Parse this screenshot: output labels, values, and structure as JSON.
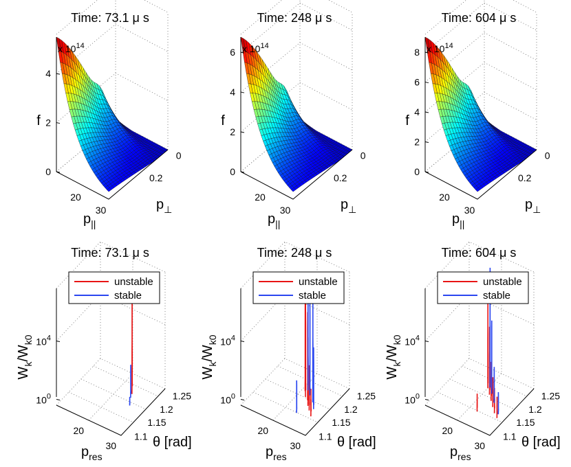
{
  "colors": {
    "unstable": "#e81414",
    "stable": "#2a46f0",
    "grid": "#666666"
  },
  "chart_data": [
    {
      "type": "surface",
      "panel": "f-1",
      "title": "Time: 73.1 μ s",
      "ylabel": "f",
      "exponent": "x 10",
      "exponent_power": "14",
      "xlabel_main": "p",
      "xlabel_sub": "||",
      "ylabel2_main": "p",
      "ylabel2_sub": "⊥",
      "z_ticks": [
        "0",
        "2",
        "4"
      ],
      "z_tick_values": [
        0,
        2,
        4
      ],
      "zlim": [
        0,
        5.6
      ],
      "p_par_ticks": [
        "20",
        "30"
      ],
      "p_perp_ticks": [
        "0",
        "0.2"
      ]
    },
    {
      "type": "surface",
      "panel": "f-2",
      "title": "Time: 248 μ s",
      "ylabel": "f",
      "exponent": "x 10",
      "exponent_power": "14",
      "xlabel_main": "p",
      "xlabel_sub": "||",
      "ylabel2_main": "p",
      "ylabel2_sub": "⊥",
      "z_ticks": [
        "0",
        "2",
        "4",
        "6"
      ],
      "z_tick_values": [
        0,
        2,
        4,
        6
      ],
      "zlim": [
        0,
        6.9
      ],
      "p_par_ticks": [
        "20",
        "30"
      ],
      "p_perp_ticks": [
        "0",
        "0.2"
      ]
    },
    {
      "type": "surface",
      "panel": "f-3",
      "title": "Time: 604 μ s",
      "ylabel": "f",
      "exponent": "x 10",
      "exponent_power": "14",
      "xlabel_main": "p",
      "xlabel_sub": "||",
      "ylabel2_main": "p",
      "ylabel2_sub": "⊥",
      "z_ticks": [
        "0",
        "2",
        "4",
        "6",
        "8"
      ],
      "z_tick_values": [
        0,
        2,
        4,
        6,
        8
      ],
      "zlim": [
        0,
        9.2
      ],
      "p_par_ticks": [
        "20",
        "30"
      ],
      "p_perp_ticks": [
        "0",
        "0.2"
      ]
    },
    {
      "type": "line3d",
      "panel": "w-1",
      "title": "Time: 73.1 μ s",
      "ylabel_main": "W",
      "ylabel_sub1": "k",
      "ylabel_mid": "/W",
      "ylabel_sub2": "k0",
      "z_ticks": [
        {
          "base": "10",
          "exp": "4"
        },
        {
          "base": "10",
          "exp": "0"
        }
      ],
      "xlabel_main": "p",
      "xlabel_sub": "res",
      "x_ticks": [
        "20",
        "30"
      ],
      "theta_ticks": [
        "1.1",
        "1.15",
        "1.2",
        "1.25"
      ],
      "theta_label": "θ [rad]",
      "legend": [
        "unstable",
        "stable"
      ],
      "series": [
        {
          "name": "unstable",
          "curves": [
            {
              "x": 0.66,
              "y": 0.75,
              "peak": 0.77,
              "width": 0.11
            }
          ]
        },
        {
          "name": "stable",
          "curves": [
            {
              "x": 0.7,
              "y": 0.66,
              "peak": 0.25,
              "width": 0.06
            },
            {
              "x": 0.78,
              "y": 0.52,
              "peak": 0.05,
              "width": 0.03
            }
          ]
        }
      ]
    },
    {
      "type": "line3d",
      "panel": "w-2",
      "title": "Time: 248 μ s",
      "ylabel_main": "W",
      "ylabel_sub1": "k",
      "ylabel_mid": "/W",
      "ylabel_sub2": "k0",
      "z_ticks": [
        {
          "base": "10",
          "exp": "4"
        },
        {
          "base": "10",
          "exp": "0"
        }
      ],
      "xlabel_main": "p",
      "xlabel_sub": "res",
      "x_ticks": [
        "20",
        "30"
      ],
      "theta_ticks": [
        "1.1",
        "1.15",
        "1.2",
        "1.25"
      ],
      "theta_label": "θ [rad]",
      "legend": [
        "unstable",
        "stable"
      ],
      "series": [
        {
          "name": "unstable",
          "curves": [
            {
              "x": 0.52,
              "y": 0.7,
              "peak": 0.85,
              "width": 0.08
            },
            {
              "x": 0.58,
              "y": 0.62,
              "peak": 0.8,
              "width": 0.09
            },
            {
              "x": 0.64,
              "y": 0.58,
              "peak": 0.72,
              "width": 0.08
            },
            {
              "x": 0.7,
              "y": 0.5,
              "peak": 0.55,
              "width": 0.08
            },
            {
              "x": 0.76,
              "y": 0.44,
              "peak": 0.35,
              "width": 0.08
            },
            {
              "x": 0.84,
              "y": 0.36,
              "peak": 0.2,
              "width": 0.07
            }
          ]
        },
        {
          "name": "stable",
          "curves": [
            {
              "x": 0.55,
              "y": 0.72,
              "peak": 0.95,
              "width": 0.06
            },
            {
              "x": 0.62,
              "y": 0.66,
              "peak": 0.88,
              "width": 0.06
            },
            {
              "x": 0.72,
              "y": 0.58,
              "peak": 0.85,
              "width": 0.07
            },
            {
              "x": 0.8,
              "y": 0.48,
              "peak": 0.5,
              "width": 0.06
            },
            {
              "x": 0.66,
              "y": 0.3,
              "peak": 0.25,
              "width": 0.05
            }
          ]
        }
      ]
    },
    {
      "type": "line3d",
      "panel": "w-3",
      "title": "Time: 604 μ s",
      "ylabel_main": "W",
      "ylabel_sub1": "k",
      "ylabel_mid": "/W",
      "ylabel_sub2": "k0",
      "z_ticks": [
        {
          "base": "10",
          "exp": "4"
        },
        {
          "base": "10",
          "exp": "0"
        }
      ],
      "xlabel_main": "p",
      "xlabel_sub": "res",
      "x_ticks": [
        "20",
        "30"
      ],
      "theta_ticks": [
        "1.1",
        "1.15",
        "1.2",
        "1.25"
      ],
      "theta_label": "θ [rad]",
      "legend": [
        "unstable",
        "stable"
      ],
      "series": [
        {
          "name": "unstable",
          "curves": [
            {
              "x": 0.48,
              "y": 0.72,
              "peak": 0.9,
              "width": 0.06
            },
            {
              "x": 0.56,
              "y": 0.64,
              "peak": 0.55,
              "width": 0.07
            },
            {
              "x": 0.64,
              "y": 0.56,
              "peak": 0.3,
              "width": 0.07
            },
            {
              "x": 0.72,
              "y": 0.48,
              "peak": 0.22,
              "width": 0.07
            },
            {
              "x": 0.8,
              "y": 0.4,
              "peak": 0.18,
              "width": 0.07
            },
            {
              "x": 0.88,
              "y": 0.34,
              "peak": 0.15,
              "width": 0.06
            },
            {
              "x": 0.6,
              "y": 0.3,
              "peak": 0.12,
              "width": 0.06
            }
          ]
        },
        {
          "name": "stable",
          "curves": [
            {
              "x": 0.5,
              "y": 0.74,
              "peak": 1.0,
              "width": 0.05
            },
            {
              "x": 0.58,
              "y": 0.66,
              "peak": 0.6,
              "width": 0.05
            },
            {
              "x": 0.7,
              "y": 0.54,
              "peak": 0.28,
              "width": 0.05
            },
            {
              "x": 0.86,
              "y": 0.4,
              "peak": 0.16,
              "width": 0.05
            }
          ]
        }
      ]
    }
  ]
}
